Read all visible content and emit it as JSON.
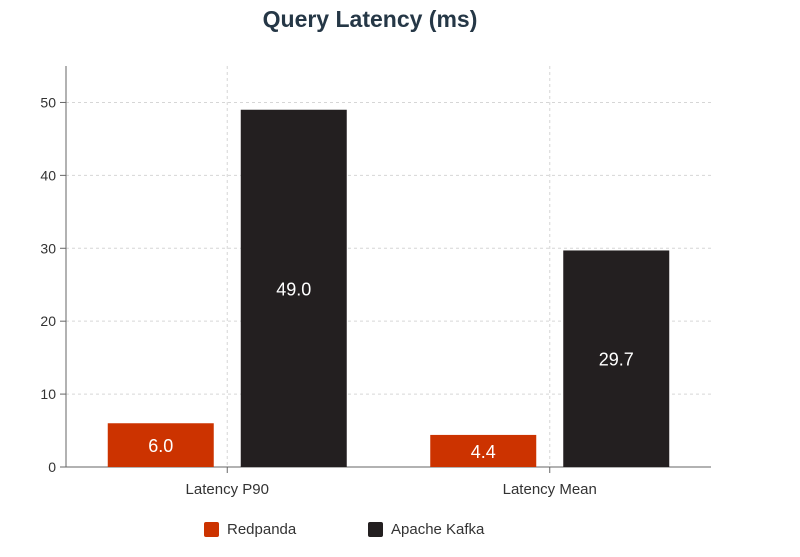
{
  "chart_data": {
    "type": "bar",
    "title": "Query Latency (ms)",
    "xlabel": "",
    "ylabel": "",
    "categories": [
      "Latency P90",
      "Latency Mean"
    ],
    "series": [
      {
        "name": "Redpanda",
        "values": [
          6.0,
          4.4
        ],
        "labels": [
          "6.0",
          "4.4"
        ],
        "color": "#cc3300"
      },
      {
        "name": "Apache Kafka",
        "values": [
          49.0,
          29.7
        ],
        "labels": [
          "49.0",
          "29.7"
        ],
        "color": "#231f20"
      }
    ],
    "ylim": [
      0,
      55
    ],
    "yticks": [
      0,
      10,
      20,
      30,
      40,
      50
    ],
    "ytick_labels": [
      "0",
      "10",
      "20",
      "30",
      "40",
      "50"
    ],
    "grid": true,
    "legend": "bottom-center"
  }
}
